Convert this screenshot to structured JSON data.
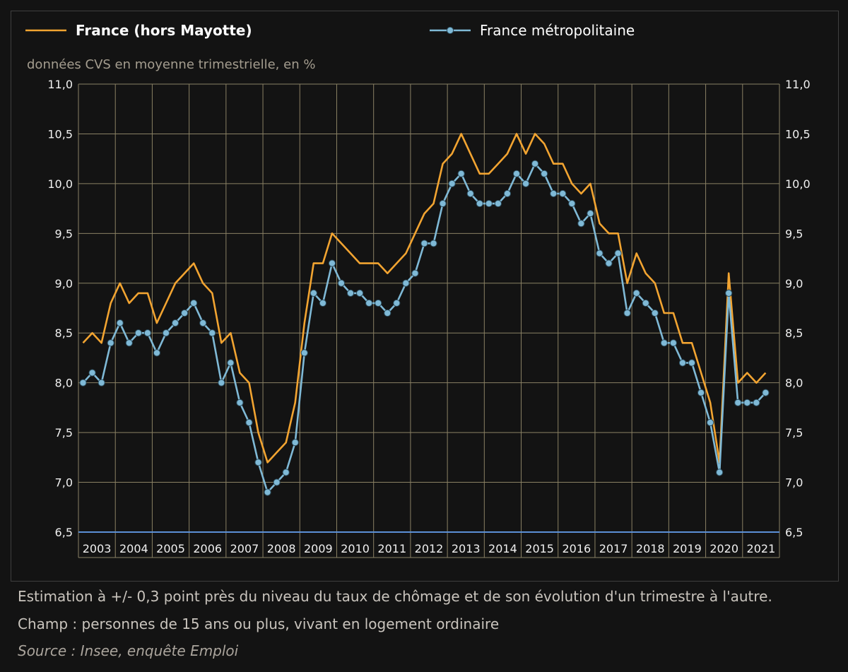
{
  "chart_data": {
    "type": "line",
    "subtitle": "données CVS en moyenne trimestrielle, en %",
    "ylim": [
      6.5,
      11.0
    ],
    "yticks": [
      "11,0",
      "10,5",
      "10,0",
      "9,5",
      "9,0",
      "8,5",
      "8,0",
      "7,5",
      "7,0",
      "6,5"
    ],
    "years": [
      "2003",
      "2004",
      "2005",
      "2006",
      "2007",
      "2008",
      "2009",
      "2010",
      "2011",
      "2012",
      "2013",
      "2014",
      "2015",
      "2016",
      "2017",
      "2018",
      "2019",
      "2020",
      "2021"
    ],
    "grid": true,
    "legend_position": "top",
    "series": [
      {
        "name": "France (hors Mayotte)",
        "color": "#f2a431",
        "marker": false,
        "values": [
          8.4,
          8.5,
          8.4,
          8.8,
          9.0,
          8.8,
          8.9,
          8.9,
          8.6,
          8.8,
          9.0,
          9.1,
          9.2,
          9.0,
          8.9,
          8.4,
          8.5,
          8.1,
          8.0,
          7.5,
          7.2,
          7.3,
          7.4,
          7.8,
          8.6,
          9.2,
          9.2,
          9.5,
          9.4,
          9.3,
          9.2,
          9.2,
          9.2,
          9.1,
          9.2,
          9.3,
          9.5,
          9.7,
          9.8,
          10.2,
          10.3,
          10.5,
          10.3,
          10.1,
          10.1,
          10.2,
          10.3,
          10.5,
          10.3,
          10.5,
          10.4,
          10.2,
          10.2,
          10.0,
          9.9,
          10.0,
          9.6,
          9.5,
          9.5,
          9.0,
          9.3,
          9.1,
          9.0,
          8.7,
          8.7,
          8.4,
          8.4,
          8.1,
          7.8,
          7.2,
          9.1,
          8.0,
          8.1,
          8.0,
          8.1
        ]
      },
      {
        "name": "France métropolitaine",
        "color": "#7fb9d6",
        "marker": true,
        "values": [
          8.0,
          8.1,
          8.0,
          8.4,
          8.6,
          8.4,
          8.5,
          8.5,
          8.3,
          8.5,
          8.6,
          8.7,
          8.8,
          8.6,
          8.5,
          8.0,
          8.2,
          7.8,
          7.6,
          7.2,
          6.9,
          7.0,
          7.1,
          7.4,
          8.3,
          8.9,
          8.8,
          9.2,
          9.0,
          8.9,
          8.9,
          8.8,
          8.8,
          8.7,
          8.8,
          9.0,
          9.1,
          9.4,
          9.4,
          9.8,
          10.0,
          10.1,
          9.9,
          9.8,
          9.8,
          9.8,
          9.9,
          10.1,
          10.0,
          10.2,
          10.1,
          9.9,
          9.9,
          9.8,
          9.6,
          9.7,
          9.3,
          9.2,
          9.3,
          8.7,
          8.9,
          8.8,
          8.7,
          8.4,
          8.4,
          8.2,
          8.2,
          7.9,
          7.6,
          7.1,
          8.9,
          7.8,
          7.8,
          7.8,
          7.9
        ]
      }
    ]
  },
  "footnotes": {
    "estimation": "Estimation à +/- 0,3 point près du niveau du taux de chômage et de son évolution d'un trimestre à l'autre.",
    "champ": "Champ : personnes de 15 ans ou plus, vivant en logement ordinaire",
    "source": "Source : Insee, enquête Emploi"
  }
}
